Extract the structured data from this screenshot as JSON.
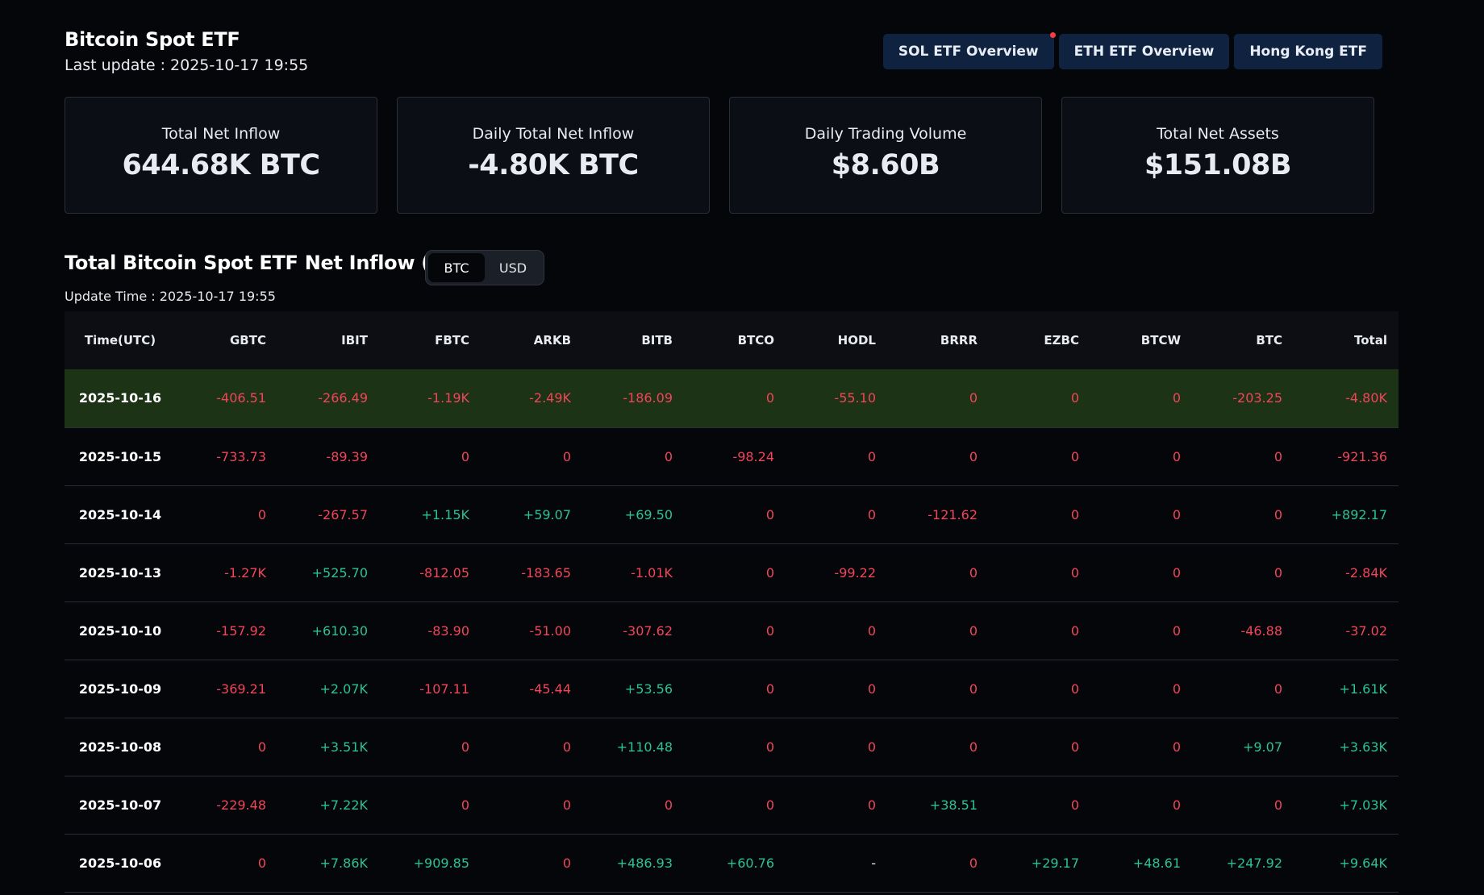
{
  "header": {
    "title": "Bitcoin Spot ETF",
    "last_update": "Last update : 2025-10-17 19:55",
    "nav": [
      "SOL ETF Overview",
      "ETH ETF Overview",
      "Hong Kong ETF"
    ]
  },
  "cards": [
    {
      "label": "Total Net Inflow",
      "value": "644.68K BTC"
    },
    {
      "label": "Daily Total Net Inflow",
      "value": "-4.80K BTC"
    },
    {
      "label": "Daily Trading Volume",
      "value": "$8.60B"
    },
    {
      "label": "Total Net Assets",
      "value": "$151.08B"
    }
  ],
  "section": {
    "title": "Total Bitcoin Spot ETF Net Inflow (BTC)",
    "toggle": [
      "BTC",
      "USD"
    ],
    "update_time": "Update Time : 2025-10-17 19:55"
  },
  "table": {
    "columns": [
      "Time(UTC)",
      "GBTC",
      "IBIT",
      "FBTC",
      "ARKB",
      "BITB",
      "BTCO",
      "HODL",
      "BRRR",
      "EZBC",
      "BTCW",
      "BTC",
      "Total"
    ],
    "rows": [
      [
        "2025-10-16",
        "-406.51",
        "-266.49",
        "-1.19K",
        "-2.49K",
        "-186.09",
        "0",
        "-55.10",
        "0",
        "0",
        "0",
        "-203.25",
        "-4.80K"
      ],
      [
        "2025-10-15",
        "-733.73",
        "-89.39",
        "0",
        "0",
        "0",
        "-98.24",
        "0",
        "0",
        "0",
        "0",
        "0",
        "-921.36"
      ],
      [
        "2025-10-14",
        "0",
        "-267.57",
        "+1.15K",
        "+59.07",
        "+69.50",
        "0",
        "0",
        "-121.62",
        "0",
        "0",
        "0",
        "+892.17"
      ],
      [
        "2025-10-13",
        "-1.27K",
        "+525.70",
        "-812.05",
        "-183.65",
        "-1.01K",
        "0",
        "-99.22",
        "0",
        "0",
        "0",
        "0",
        "-2.84K"
      ],
      [
        "2025-10-10",
        "-157.92",
        "+610.30",
        "-83.90",
        "-51.00",
        "-307.62",
        "0",
        "0",
        "0",
        "0",
        "0",
        "-46.88",
        "-37.02"
      ],
      [
        "2025-10-09",
        "-369.21",
        "+2.07K",
        "-107.11",
        "-45.44",
        "+53.56",
        "0",
        "0",
        "0",
        "0",
        "0",
        "0",
        "+1.61K"
      ],
      [
        "2025-10-08",
        "0",
        "+3.51K",
        "0",
        "0",
        "+110.48",
        "0",
        "0",
        "0",
        "0",
        "0",
        "+9.07",
        "+3.63K"
      ],
      [
        "2025-10-07",
        "-229.48",
        "+7.22K",
        "0",
        "0",
        "0",
        "0",
        "0",
        "+38.51",
        "0",
        "0",
        "0",
        "+7.03K"
      ],
      [
        "2025-10-06",
        "0",
        "+7.86K",
        "+909.85",
        "0",
        "+486.93",
        "+60.76",
        "-",
        "0",
        "+29.17",
        "+48.61",
        "+247.92",
        "+9.64K"
      ]
    ]
  }
}
